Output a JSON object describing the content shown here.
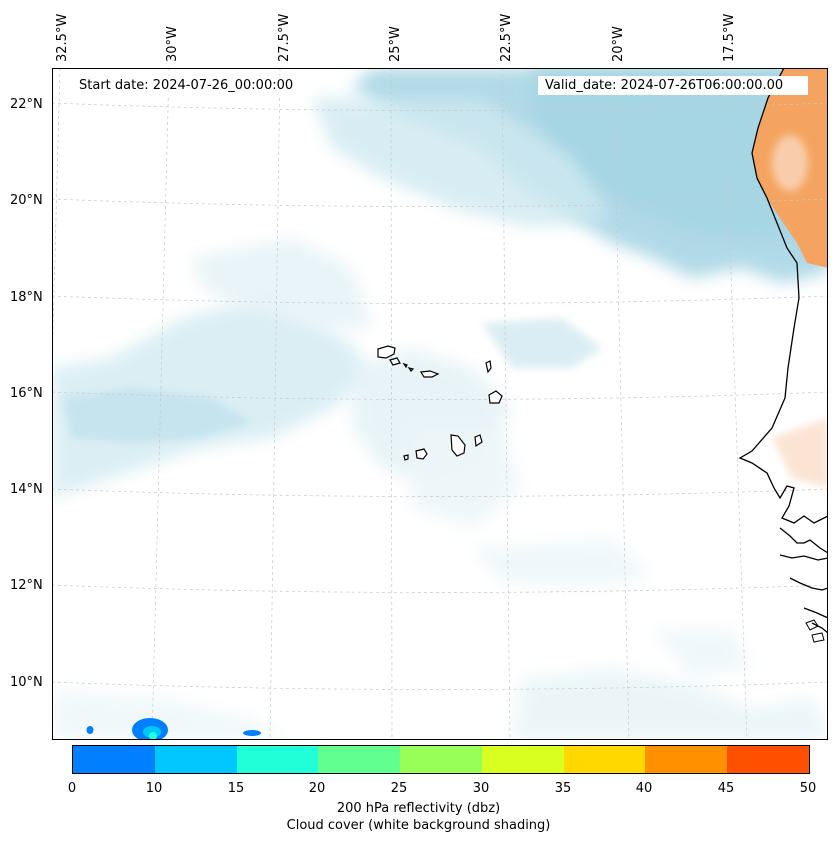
{
  "map": {
    "start_date": "Start date: 2024-07-26_00:00:00",
    "valid_date": "Valid_date: 2024-07-26T06:00:00.00",
    "lon_labels": [
      "32.5°W",
      "30°W",
      "27.5°W",
      "25°W",
      "22.5°W",
      "20°W",
      "17.5°W"
    ],
    "lat_labels": [
      "22°N",
      "20°N",
      "18°N",
      "16°N",
      "14°N",
      "12°N",
      "10°N"
    ],
    "colors": {
      "cloud": "#add8e6",
      "land_shading": "#f4a460",
      "coastline": "#000000",
      "gridline": "#c8c8c8"
    }
  },
  "colorbar": {
    "ticks": [
      "0",
      "10",
      "15",
      "20",
      "25",
      "30",
      "35",
      "40",
      "45",
      "50"
    ],
    "colors": [
      "#0080ff",
      "#00c8ff",
      "#20ffd8",
      "#60ff90",
      "#98ff58",
      "#d8ff20",
      "#ffd800",
      "#ff9000",
      "#ff5000"
    ],
    "label_line1": "200 hPa reflectivity (dbz)",
    "label_line2": "Cloud cover (white background shading)"
  }
}
